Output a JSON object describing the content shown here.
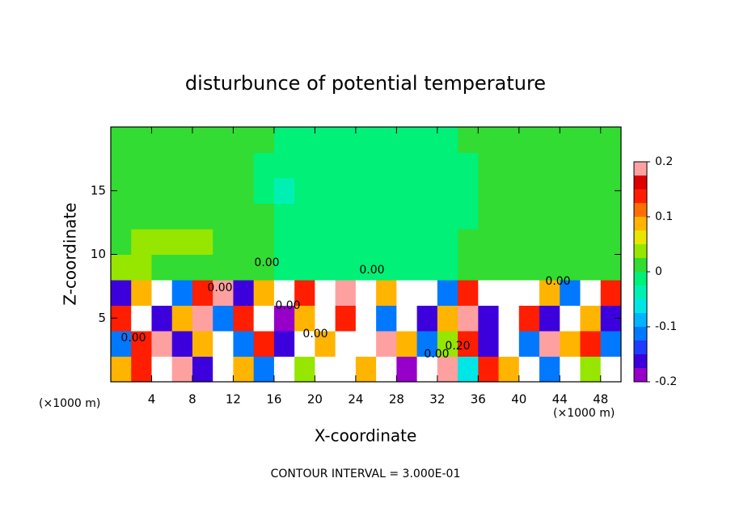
{
  "chart_data": {
    "type": "contour",
    "title": "disturbunce of potential temperature",
    "x_label": "X-coordinate",
    "y_label": "Z-coordinate",
    "x_unit_left": "(×1000 m)",
    "x_unit_right": "(×1000 m)",
    "footnote": "CONTOUR INTERVAL = 3.000E-01",
    "contour_labels": [
      "0.00",
      "0.00",
      "0.00",
      "0.00",
      "0.00",
      "0.00",
      "0.00",
      "0.20",
      "0.00"
    ],
    "xlim": [
      0,
      50
    ],
    "ylim": [
      0,
      20
    ],
    "xticks": [
      4,
      8,
      12,
      16,
      20,
      24,
      28,
      32,
      36,
      40,
      44,
      48
    ],
    "yticks": [
      5,
      10,
      15
    ],
    "x": [
      1,
      3,
      5,
      7,
      9,
      11,
      13,
      15,
      17,
      19,
      21,
      23,
      25,
      27,
      29,
      31,
      33,
      35,
      37,
      39,
      41,
      43,
      45,
      47,
      49
    ],
    "z": [
      1,
      3,
      5,
      7,
      9,
      11,
      13,
      15,
      17,
      19
    ],
    "values": [
      [
        0.1,
        0.15,
        0.3,
        0.2,
        -0.15,
        0.3,
        0.1,
        -0.1,
        0.3,
        0.05,
        -0.3,
        0.3,
        0.1,
        0.3,
        -0.2,
        0.3,
        0.2,
        -0.05,
        0.15,
        0.1,
        0.3,
        -0.1,
        0.3,
        0.05,
        0.3
      ],
      [
        -0.1,
        0.15,
        0.2,
        -0.15,
        0.1,
        0.3,
        -0.1,
        0.15,
        -0.15,
        0.3,
        0.1,
        -0.3,
        0.3,
        0.2,
        0.1,
        -0.1,
        0.05,
        0.15,
        -0.15,
        0.3,
        -0.1,
        0.2,
        0.1,
        0.15,
        -0.1
      ],
      [
        0.15,
        0.3,
        -0.15,
        0.1,
        0.2,
        -0.1,
        0.15,
        0.3,
        -0.2,
        0.1,
        0.3,
        0.15,
        0.3,
        -0.1,
        0.3,
        -0.15,
        0.1,
        0.2,
        -0.15,
        0.3,
        0.15,
        -0.15,
        0.3,
        0.1,
        -0.15
      ],
      [
        -0.15,
        0.1,
        0.3,
        -0.1,
        0.15,
        0.2,
        -0.15,
        0.1,
        0.3,
        0.15,
        0.3,
        0.2,
        0.3,
        0.1,
        0.3,
        0.3,
        -0.1,
        0.15,
        0.3,
        0.3,
        0.3,
        0.1,
        -0.1,
        0.3,
        0.15
      ],
      [
        0.03,
        0.03,
        0.02,
        0.02,
        0.015,
        0.01,
        0.01,
        0.005,
        -0.005,
        -0.005,
        -0.005,
        -0.005,
        -0.005,
        -0.005,
        -0.005,
        -0.005,
        -0.005,
        0.005,
        0.01,
        0.01,
        0.015,
        0.02,
        0.015,
        0.01,
        0.01
      ],
      [
        0.02,
        0.04,
        0.04,
        0.03,
        0.03,
        0.02,
        0.01,
        0.005,
        -0.005,
        -0.01,
        -0.01,
        -0.01,
        -0.01,
        -0.01,
        -0.005,
        -0.005,
        -0.005,
        0.005,
        0.005,
        0.01,
        0.01,
        0.015,
        0.01,
        0.01,
        0.01
      ],
      [
        0.015,
        0.02,
        0.02,
        0.02,
        0.015,
        0.01,
        0.005,
        0.005,
        -0.01,
        -0.01,
        -0.01,
        -0.01,
        -0.01,
        -0.01,
        -0.005,
        -0.005,
        -0.005,
        -0.005,
        0.005,
        0.01,
        0.01,
        0.01,
        0.01,
        0.01,
        0.01
      ],
      [
        0.01,
        0.015,
        0.015,
        0.01,
        0.01,
        0.01,
        0.005,
        -0.005,
        -0.03,
        -0.01,
        -0.01,
        -0.005,
        -0.01,
        -0.01,
        -0.005,
        -0.005,
        -0.005,
        -0.005,
        0.005,
        0.01,
        0.01,
        0.015,
        0.01,
        0.01,
        0.01
      ],
      [
        0.01,
        0.01,
        0.01,
        0.01,
        0.01,
        0.01,
        0.005,
        -0.005,
        -0.01,
        -0.01,
        -0.005,
        -0.005,
        -0.01,
        -0.005,
        -0.005,
        -0.005,
        -0.005,
        -0.005,
        0.005,
        0.01,
        0.015,
        0.01,
        0.01,
        0.01,
        0.01
      ],
      [
        0.01,
        0.01,
        0.01,
        0.01,
        0.01,
        0.005,
        0.005,
        0.005,
        -0.005,
        -0.005,
        -0.005,
        -0.005,
        -0.005,
        -0.005,
        -0.005,
        -0.005,
        -0.005,
        0.005,
        0.005,
        0.01,
        0.01,
        0.01,
        0.01,
        0.01,
        0.01
      ]
    ],
    "colorbar": {
      "levels": [
        -0.2,
        -0.175,
        -0.15,
        -0.125,
        -0.1,
        -0.075,
        -0.05,
        -0.025,
        0,
        0.025,
        0.05,
        0.075,
        0.1,
        0.125,
        0.15,
        0.175,
        0.2
      ],
      "colors": [
        "#9600c8",
        "#3c00dc",
        "#1e3cff",
        "#0078ff",
        "#00b4ff",
        "#00e6e6",
        "#00f0b4",
        "#00f078",
        "#32dc32",
        "#96e600",
        "#e6e600",
        "#ffb400",
        "#ff6e00",
        "#ff1e00",
        "#dc0000",
        "#ffa0a0"
      ],
      "ticks": [
        -0.2,
        -0.1,
        0,
        0.1,
        0.2
      ]
    }
  }
}
